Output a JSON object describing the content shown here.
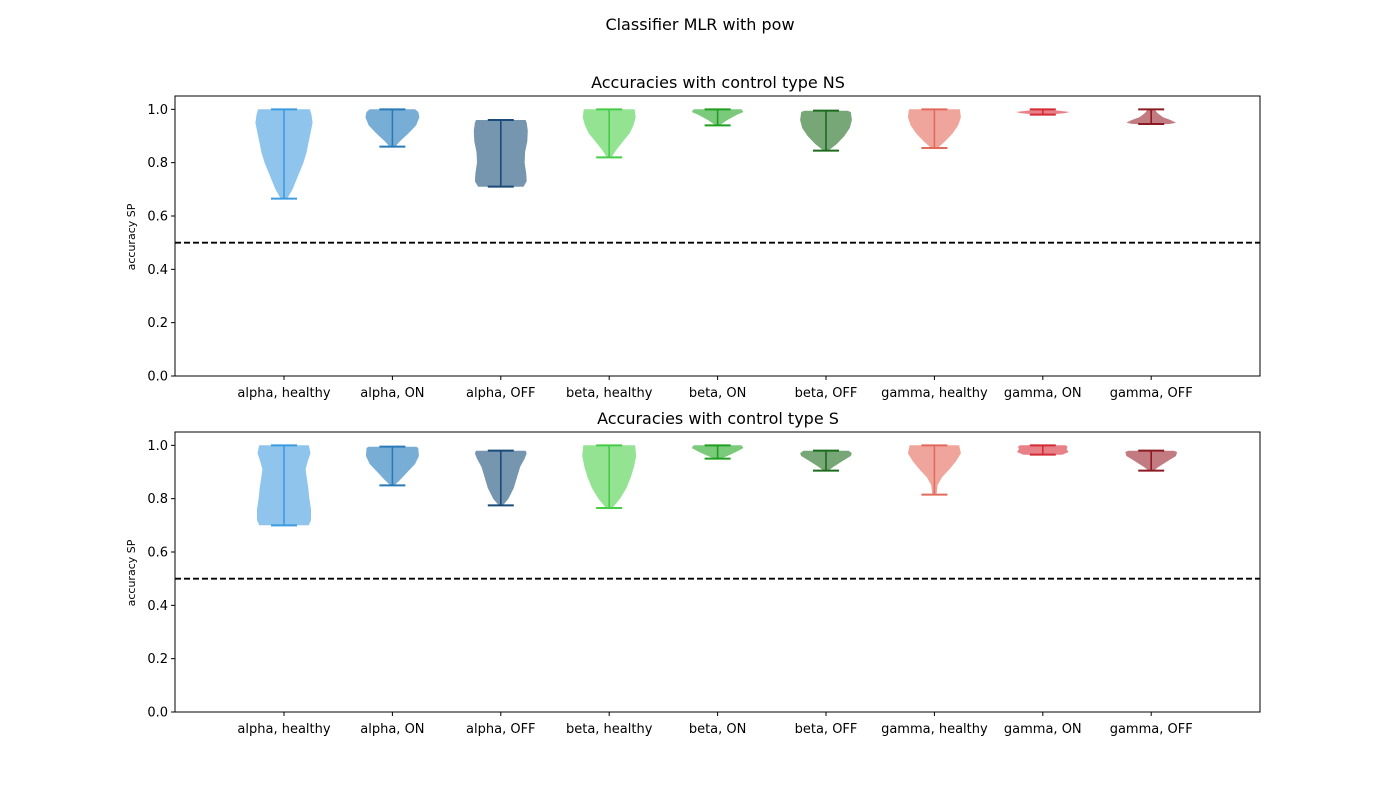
{
  "figure": {
    "suptitle": "Classifier MLR with pow"
  },
  "chart_data": [
    {
      "type": "violin",
      "title": "Accuracies with control type NS",
      "xlabel": "",
      "ylabel": "accuracy SP",
      "ylim": [
        0,
        1.05
      ],
      "yticks": [
        "0.0",
        "0.2",
        "0.4",
        "0.6",
        "0.8",
        "1.0"
      ],
      "reference_line": {
        "y": 0.5,
        "style": "dashed",
        "color": "#000000"
      },
      "categories": [
        "alpha, healthy",
        "alpha, ON",
        "alpha, OFF",
        "beta, healthy",
        "beta, ON",
        "beta, OFF",
        "gamma, healthy",
        "gamma, ON",
        "gamma, OFF"
      ],
      "violins": [
        {
          "min": 0.665,
          "max": 1.0,
          "color": "#3d9be0",
          "fill": "#8fc5ec",
          "shape": [
            [
              0.665,
              0.06
            ],
            [
              0.7,
              0.16
            ],
            [
              0.75,
              0.26
            ],
            [
              0.8,
              0.36
            ],
            [
              0.84,
              0.42
            ],
            [
              0.88,
              0.46
            ],
            [
              0.92,
              0.5
            ],
            [
              0.95,
              0.53
            ],
            [
              0.98,
              0.51
            ],
            [
              1.0,
              0.48
            ]
          ]
        },
        {
          "min": 0.86,
          "max": 1.0,
          "color": "#2a7ab8",
          "fill": "#78aed6",
          "shape": [
            [
              0.86,
              0.05
            ],
            [
              0.88,
              0.14
            ],
            [
              0.91,
              0.3
            ],
            [
              0.94,
              0.44
            ],
            [
              0.97,
              0.5
            ],
            [
              0.99,
              0.48
            ],
            [
              1.0,
              0.42
            ]
          ]
        },
        {
          "min": 0.71,
          "max": 0.96,
          "color": "#1b4b78",
          "fill": "#7695af",
          "shape": [
            [
              0.71,
              0.42
            ],
            [
              0.73,
              0.48
            ],
            [
              0.76,
              0.47
            ],
            [
              0.8,
              0.44
            ],
            [
              0.84,
              0.45
            ],
            [
              0.88,
              0.49
            ],
            [
              0.92,
              0.5
            ],
            [
              0.95,
              0.48
            ],
            [
              0.96,
              0.46
            ]
          ]
        },
        {
          "min": 0.82,
          "max": 1.0,
          "color": "#46cc46",
          "fill": "#93e393",
          "shape": [
            [
              0.82,
              0.04
            ],
            [
              0.85,
              0.14
            ],
            [
              0.88,
              0.26
            ],
            [
              0.91,
              0.38
            ],
            [
              0.94,
              0.45
            ],
            [
              0.97,
              0.49
            ],
            [
              1.0,
              0.47
            ]
          ]
        },
        {
          "min": 0.94,
          "max": 1.0,
          "color": "#1f9e1f",
          "fill": "#7bc97b",
          "shape": [
            [
              0.94,
              0.04
            ],
            [
              0.96,
              0.18
            ],
            [
              0.98,
              0.36
            ],
            [
              0.99,
              0.48
            ],
            [
              1.0,
              0.44
            ]
          ]
        },
        {
          "min": 0.845,
          "max": 0.995,
          "color": "#1c6b1c",
          "fill": "#77a677",
          "shape": [
            [
              0.845,
              0.04
            ],
            [
              0.87,
              0.2
            ],
            [
              0.9,
              0.34
            ],
            [
              0.93,
              0.44
            ],
            [
              0.96,
              0.48
            ],
            [
              0.99,
              0.46
            ],
            [
              0.995,
              0.4
            ]
          ]
        },
        {
          "min": 0.855,
          "max": 1.0,
          "color": "#e06a5c",
          "fill": "#f0a59c",
          "shape": [
            [
              0.855,
              0.06
            ],
            [
              0.88,
              0.2
            ],
            [
              0.91,
              0.34
            ],
            [
              0.94,
              0.44
            ],
            [
              0.97,
              0.49
            ],
            [
              1.0,
              0.47
            ]
          ]
        },
        {
          "min": 0.98,
          "max": 1.0,
          "color": "#d42c37",
          "fill": "#e88087",
          "shape": [
            [
              0.98,
              0.06
            ],
            [
              0.985,
              0.4
            ],
            [
              0.99,
              0.5
            ],
            [
              0.995,
              0.3
            ],
            [
              1.0,
              0.08
            ]
          ]
        },
        {
          "min": 0.945,
          "max": 1.0,
          "color": "#8c1a22",
          "fill": "#c27b80",
          "shape": [
            [
              0.945,
              0.34
            ],
            [
              0.95,
              0.46
            ],
            [
              0.96,
              0.36
            ],
            [
              0.97,
              0.22
            ],
            [
              0.985,
              0.12
            ],
            [
              1.0,
              0.06
            ]
          ]
        }
      ]
    },
    {
      "type": "violin",
      "title": "Accuracies with control type S",
      "xlabel": "",
      "ylabel": "accuracy SP",
      "ylim": [
        0,
        1.05
      ],
      "yticks": [
        "0.0",
        "0.2",
        "0.4",
        "0.6",
        "0.8",
        "1.0"
      ],
      "reference_line": {
        "y": 0.5,
        "style": "dashed",
        "color": "#000000"
      },
      "categories": [
        "alpha, healthy",
        "alpha, ON",
        "alpha, OFF",
        "beta, healthy",
        "beta, ON",
        "beta, OFF",
        "gamma, healthy",
        "gamma, ON",
        "gamma, OFF"
      ],
      "violins": [
        {
          "min": 0.7,
          "max": 1.0,
          "color": "#3d9be0",
          "fill": "#8fc5ec",
          "shape": [
            [
              0.7,
              0.46
            ],
            [
              0.72,
              0.5
            ],
            [
              0.76,
              0.5
            ],
            [
              0.8,
              0.47
            ],
            [
              0.84,
              0.45
            ],
            [
              0.88,
              0.42
            ],
            [
              0.91,
              0.4
            ],
            [
              0.94,
              0.44
            ],
            [
              0.97,
              0.49
            ],
            [
              1.0,
              0.46
            ]
          ]
        },
        {
          "min": 0.85,
          "max": 0.995,
          "color": "#2a7ab8",
          "fill": "#78aed6",
          "shape": [
            [
              0.85,
              0.04
            ],
            [
              0.87,
              0.14
            ],
            [
              0.9,
              0.28
            ],
            [
              0.93,
              0.42
            ],
            [
              0.96,
              0.49
            ],
            [
              0.99,
              0.48
            ],
            [
              0.995,
              0.44
            ]
          ]
        },
        {
          "min": 0.775,
          "max": 0.98,
          "color": "#1b4b78",
          "fill": "#7695af",
          "shape": [
            [
              0.775,
              0.04
            ],
            [
              0.8,
              0.14
            ],
            [
              0.84,
              0.24
            ],
            [
              0.88,
              0.3
            ],
            [
              0.92,
              0.36
            ],
            [
              0.95,
              0.44
            ],
            [
              0.97,
              0.48
            ],
            [
              0.98,
              0.46
            ]
          ]
        },
        {
          "min": 0.765,
          "max": 1.0,
          "color": "#46cc46",
          "fill": "#93e393",
          "shape": [
            [
              0.765,
              0.06
            ],
            [
              0.8,
              0.2
            ],
            [
              0.84,
              0.32
            ],
            [
              0.88,
              0.4
            ],
            [
              0.92,
              0.46
            ],
            [
              0.96,
              0.5
            ],
            [
              1.0,
              0.48
            ]
          ]
        },
        {
          "min": 0.95,
          "max": 1.0,
          "color": "#1f9e1f",
          "fill": "#7bc97b",
          "shape": [
            [
              0.95,
              0.06
            ],
            [
              0.96,
              0.18
            ],
            [
              0.975,
              0.34
            ],
            [
              0.99,
              0.48
            ],
            [
              1.0,
              0.44
            ]
          ]
        },
        {
          "min": 0.905,
          "max": 0.98,
          "color": "#1c6b1c",
          "fill": "#77a677",
          "shape": [
            [
              0.905,
              0.04
            ],
            [
              0.92,
              0.14
            ],
            [
              0.94,
              0.3
            ],
            [
              0.96,
              0.46
            ],
            [
              0.97,
              0.48
            ],
            [
              0.98,
              0.42
            ]
          ]
        },
        {
          "min": 0.815,
          "max": 1.0,
          "color": "#e06a5c",
          "fill": "#f0a59c",
          "shape": [
            [
              0.815,
              0.04
            ],
            [
              0.85,
              0.06
            ],
            [
              0.88,
              0.14
            ],
            [
              0.91,
              0.28
            ],
            [
              0.94,
              0.4
            ],
            [
              0.97,
              0.49
            ],
            [
              1.0,
              0.46
            ]
          ]
        },
        {
          "min": 0.965,
          "max": 1.0,
          "color": "#d42c37",
          "fill": "#e88087",
          "shape": [
            [
              0.965,
              0.36
            ],
            [
              0.975,
              0.48
            ],
            [
              0.985,
              0.44
            ],
            [
              0.995,
              0.46
            ],
            [
              1.0,
              0.42
            ]
          ]
        },
        {
          "min": 0.905,
          "max": 0.98,
          "color": "#8c1a22",
          "fill": "#c27b80",
          "shape": [
            [
              0.905,
              0.04
            ],
            [
              0.92,
              0.14
            ],
            [
              0.94,
              0.3
            ],
            [
              0.96,
              0.46
            ],
            [
              0.975,
              0.48
            ],
            [
              0.98,
              0.42
            ]
          ]
        }
      ]
    }
  ]
}
